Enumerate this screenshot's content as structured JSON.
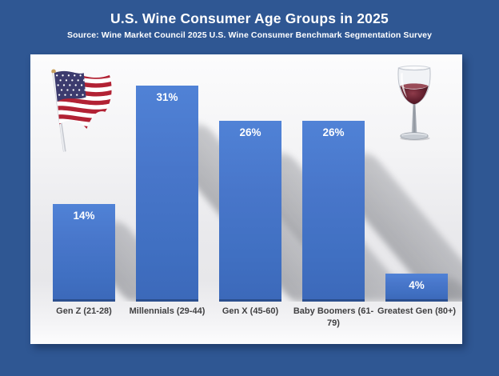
{
  "chart_data": {
    "type": "bar",
    "title": "U.S. Wine Consumer Age Groups in 2025",
    "source": "Source: Wine Market Council 2025 U.S. Wine Consumer Benchmark Segmentation Survey",
    "categories": [
      "Gen Z (21-28)",
      "Millennials (29-44)",
      "Gen X (45-60)",
      "Baby Boomers (61-79)",
      "Greatest Gen (80+)"
    ],
    "values": [
      14,
      31,
      26,
      26,
      4
    ],
    "value_labels": [
      "14%",
      "31%",
      "26%",
      "26%",
      "4%"
    ],
    "unit": "%",
    "xlabel": "",
    "ylabel": "",
    "ylim": [
      0,
      31
    ],
    "grid": false,
    "legend": "none",
    "value_label_position": "inside-top",
    "colors": {
      "background": "#2F5793",
      "panel": "#EDEDEF",
      "bar": "#4472C4",
      "bar_edge_bottom": "#2B4F8E",
      "value_label": "#FFFFFF",
      "category_label": "#3F3F41",
      "title_text": "#FFFFFF",
      "shadow": "#75777D"
    }
  },
  "decorations": {
    "flag": "us-flag",
    "glass": "red-wine-glass"
  }
}
